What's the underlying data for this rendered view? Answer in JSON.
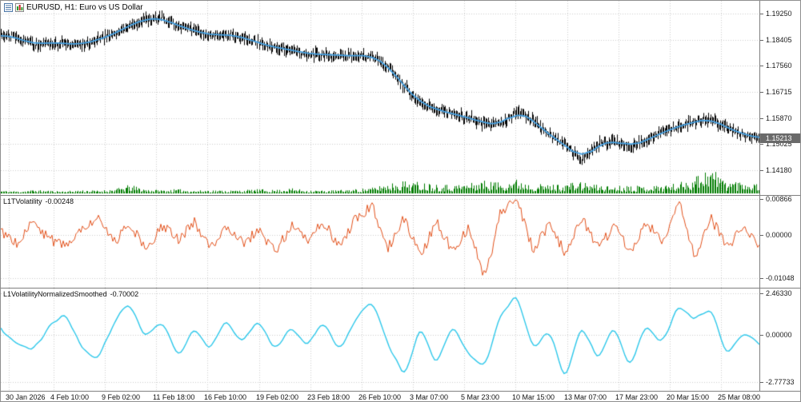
{
  "title_bar": {
    "title": "EURUSD, H1: Euro vs US Dollar"
  },
  "price_badge": "1.15213",
  "indicator1_header": {
    "name": "L1TVolatility",
    "value": "-0.00248"
  },
  "indicator2_header": {
    "name": "L1VolatilityNormalizedSmoothed",
    "value": "-0.70002"
  },
  "colors": {
    "candle": "#000000",
    "ma_line": "#44a0e2",
    "volume": "#007c00",
    "indicator1_line": "#e2511b",
    "indicator2_line": "#2cc7ea",
    "grid": "#cdcdcd",
    "panel_border": "#7f7f7f",
    "badge_bg": "#6a6a6a",
    "badge_text": "#ffffff"
  },
  "chart_data": [
    {
      "type": "candlestick",
      "symbol": "EURUSD",
      "timeframe": "H1",
      "description": "Euro vs US Dollar",
      "ylim": [
        1.1418,
        1.1925
      ],
      "y_ticks": [
        "1.19250",
        "1.18405",
        "1.17560",
        "1.16715",
        "1.15870",
        "1.15025",
        "1.14180"
      ],
      "x_tick_labels": [
        "30 Jan 2026",
        "4 Feb 10:00",
        "9 Feb 02:00",
        "11 Feb 18:00",
        "16 Feb 10:00",
        "19 Feb 02:00",
        "23 Feb 18:00",
        "26 Feb 10:00",
        "3 Mar 07:00",
        "5 Mar 23:00",
        "10 Mar 15:00",
        "13 Mar 07:00",
        "17 Mar 23:00",
        "20 Mar 15:00",
        "25 Mar 08:00"
      ],
      "last_price": 1.15213,
      "overlay_line": "smoothed moving average (blue)",
      "close": [
        1.1855,
        1.1848,
        1.1825,
        1.1832,
        1.1828,
        1.1825,
        1.184,
        1.1858,
        1.1888,
        1.1908,
        1.191,
        1.1885,
        1.187,
        1.1855,
        1.1858,
        1.1848,
        1.183,
        1.1815,
        1.1808,
        1.1795,
        1.1793,
        1.179,
        1.1788,
        1.179,
        1.1755,
        1.169,
        1.1635,
        1.1615,
        1.16,
        1.1588,
        1.157,
        1.1565,
        1.161,
        1.158,
        1.153,
        1.15,
        1.1452,
        1.15,
        1.1515,
        1.1495,
        1.1515,
        1.154,
        1.156,
        1.1575,
        1.1585,
        1.1555,
        1.1535,
        1.1522
      ],
      "volume_relative": [
        0.1,
        0.08,
        0.12,
        0.1,
        0.08,
        0.12,
        0.1,
        0.15,
        0.3,
        0.15,
        0.12,
        0.15,
        0.1,
        0.12,
        0.1,
        0.12,
        0.15,
        0.12,
        0.18,
        0.12,
        0.1,
        0.12,
        0.15,
        0.2,
        0.35,
        0.45,
        0.4,
        0.35,
        0.3,
        0.35,
        0.45,
        0.4,
        0.5,
        0.35,
        0.3,
        0.35,
        0.4,
        0.3,
        0.25,
        0.3,
        0.25,
        0.3,
        0.35,
        0.6,
        0.95,
        0.45,
        0.45,
        0.35
      ]
    },
    {
      "type": "line",
      "name": "L1TVolatility",
      "last_value": -0.00248,
      "ylim": [
        -0.01048,
        0.00866
      ],
      "y_ticks": [
        "0.00866",
        "0.00000",
        "-0.01048"
      ],
      "values": [
        0.001,
        -0.002,
        0.003,
        -0.001,
        -0.003,
        0.002,
        0.004,
        -0.002,
        0.003,
        -0.004,
        0.002,
        -0.001,
        0.003,
        -0.003,
        0.002,
        -0.002,
        0.001,
        -0.004,
        0.002,
        -0.001,
        0.003,
        -0.003,
        0.004,
        0.007,
        -0.003,
        0.004,
        -0.005,
        0.003,
        -0.004,
        0.002,
        -0.0105,
        0.006,
        0.008,
        -0.004,
        0.003,
        -0.005,
        0.004,
        -0.003,
        0.002,
        -0.004,
        0.003,
        -0.002,
        0.0087,
        -0.005,
        0.004,
        -0.003,
        0.002,
        -0.00248
      ]
    },
    {
      "type": "line",
      "name": "L1VolatilityNormalizedSmoothed",
      "last_value": -0.70002,
      "ylim": [
        -2.77733,
        2.4633
      ],
      "y_ticks": [
        "2.46330",
        "0.00000",
        "-2.77733"
      ],
      "values": [
        0.3,
        -0.5,
        -0.9,
        0.4,
        1.4,
        -0.7,
        -1.5,
        0.7,
        1.9,
        -0.2,
        0.9,
        -1.3,
        0.5,
        -0.9,
        0.9,
        -0.5,
        1.1,
        -1.1,
        0.6,
        -0.7,
        0.9,
        -1.2,
        1.0,
        2.2,
        -0.6,
        -2.5,
        0.7,
        -1.9,
        0.5,
        -1.2,
        -1.8,
        1.3,
        2.4,
        -0.9,
        0.4,
        -2.78,
        0.8,
        -1.6,
        0.6,
        -1.9,
        0.8,
        -0.6,
        1.9,
        0.8,
        1.7,
        -1.4,
        0.3,
        -0.70002
      ]
    }
  ]
}
